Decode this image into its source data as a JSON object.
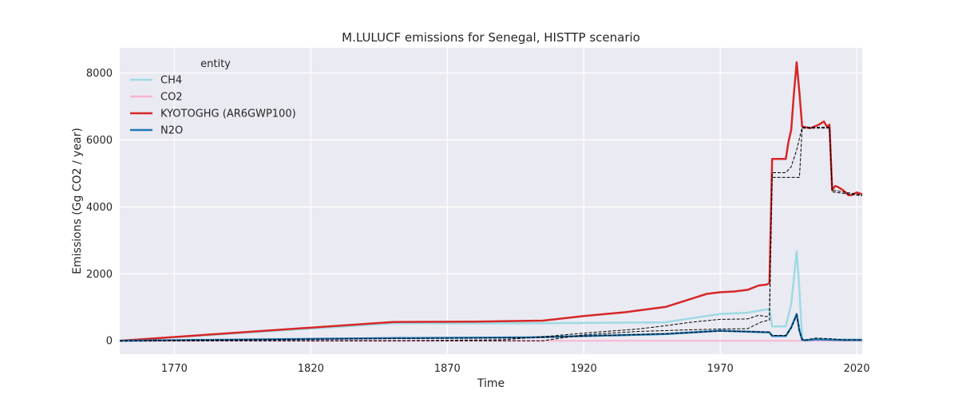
{
  "chart_data": {
    "type": "line",
    "title": "M.LULUCF emissions for Senegal, HISTTP scenario",
    "xlabel": "Time",
    "ylabel": "Emissions (Gg CO2 / year)",
    "xlim": [
      1750,
      2022
    ],
    "ylim": [
      -400,
      8750
    ],
    "xticks": [
      1770,
      1820,
      1870,
      1920,
      1970,
      2020
    ],
    "yticks": [
      0,
      2000,
      4000,
      6000,
      8000
    ],
    "grid": true,
    "legend": {
      "title": "entity",
      "placement": "top-left",
      "entries": [
        "CH4",
        "CO2",
        "KYOTOGHG (AR6GWP100)",
        "N2O"
      ]
    },
    "colors": {
      "CH4": "#9edae5",
      "CO2": "#f7b6d2",
      "KYOTOGHG": "#d62728",
      "N2O": "#1f77b4",
      "background": "#eaeaf2"
    },
    "series": [
      {
        "name": "CH4",
        "x": [
          1750,
          1850,
          1900,
          1950,
          1960,
          1970,
          1980,
          1988,
          1989,
          1994,
          1996,
          1998,
          1999,
          2000,
          2001,
          2005,
          2010,
          2015,
          2022
        ],
        "y": [
          0,
          520,
          520,
          550,
          680,
          800,
          840,
          950,
          430,
          430,
          1100,
          2680,
          1500,
          60,
          20,
          60,
          50,
          40,
          40
        ]
      },
      {
        "name": "CO2",
        "x": [
          1750,
          2022
        ],
        "y": [
          0,
          0
        ]
      },
      {
        "name": "KYOTOGHG (AR6GWP100)",
        "x": [
          1750,
          1850,
          1880,
          1905,
          1920,
          1935,
          1950,
          1960,
          1965,
          1970,
          1975,
          1980,
          1984,
          1987,
          1988,
          1989,
          1990,
          1994,
          1995,
          1996,
          1997,
          1998,
          1999,
          2000,
          2003,
          2006,
          2007,
          2008,
          2009,
          2010,
          2011,
          2012,
          2013,
          2015,
          2017,
          2018,
          2020,
          2022
        ],
        "y": [
          0,
          560,
          570,
          600,
          740,
          850,
          1010,
          1270,
          1400,
          1450,
          1470,
          1520,
          1650,
          1680,
          1720,
          5430,
          5430,
          5430,
          5950,
          6300,
          7400,
          8320,
          7400,
          6400,
          6350,
          6450,
          6500,
          6550,
          6400,
          6450,
          4500,
          4620,
          4600,
          4500,
          4350,
          4350,
          4430,
          4380
        ]
      },
      {
        "name": "N2O",
        "x": [
          1750,
          1850,
          1900,
          1950,
          1970,
          1988,
          1989,
          1994,
          1996,
          1998,
          1999,
          2000,
          2001,
          2005,
          2010,
          2015,
          2022
        ],
        "y": [
          0,
          80,
          100,
          200,
          300,
          250,
          140,
          140,
          400,
          800,
          300,
          30,
          10,
          40,
          30,
          20,
          20
        ]
      }
    ],
    "reference_lines": [
      {
        "x": [
          1750,
          1850,
          1900,
          1905,
          1920,
          1940,
          1960,
          1970,
          1980,
          1985,
          1988,
          1989,
          1994,
          1997,
          1999,
          2000,
          2010,
          2011,
          2020,
          2022
        ],
        "y": [
          0,
          0,
          0,
          0,
          180,
          280,
          330,
          350,
          360,
          560,
          620,
          4880,
          4880,
          4880,
          4880,
          6350,
          6350,
          4450,
          4350,
          4330
        ]
      },
      {
        "x": [
          1750,
          1850,
          1890,
          1905,
          1920,
          1940,
          1950,
          1960,
          1970,
          1980,
          1984,
          1987,
          1988,
          1989,
          1994,
          1996,
          1998,
          2000,
          2010,
          2011,
          2020,
          2022
        ],
        "y": [
          0,
          0,
          30,
          120,
          230,
          350,
          450,
          560,
          640,
          650,
          760,
          720,
          760,
          5020,
          5020,
          5200,
          5700,
          6380,
          6380,
          4500,
          4380,
          4350
        ]
      },
      {
        "x": [
          1750,
          1850,
          1900,
          1950,
          1970,
          1988,
          1989,
          1994,
          1996,
          1998,
          1999,
          2000,
          2001,
          2005,
          2010,
          2015,
          2022
        ],
        "y": [
          0,
          70,
          90,
          210,
          290,
          260,
          160,
          160,
          380,
          760,
          280,
          40,
          20,
          80,
          60,
          30,
          30
        ]
      }
    ]
  }
}
